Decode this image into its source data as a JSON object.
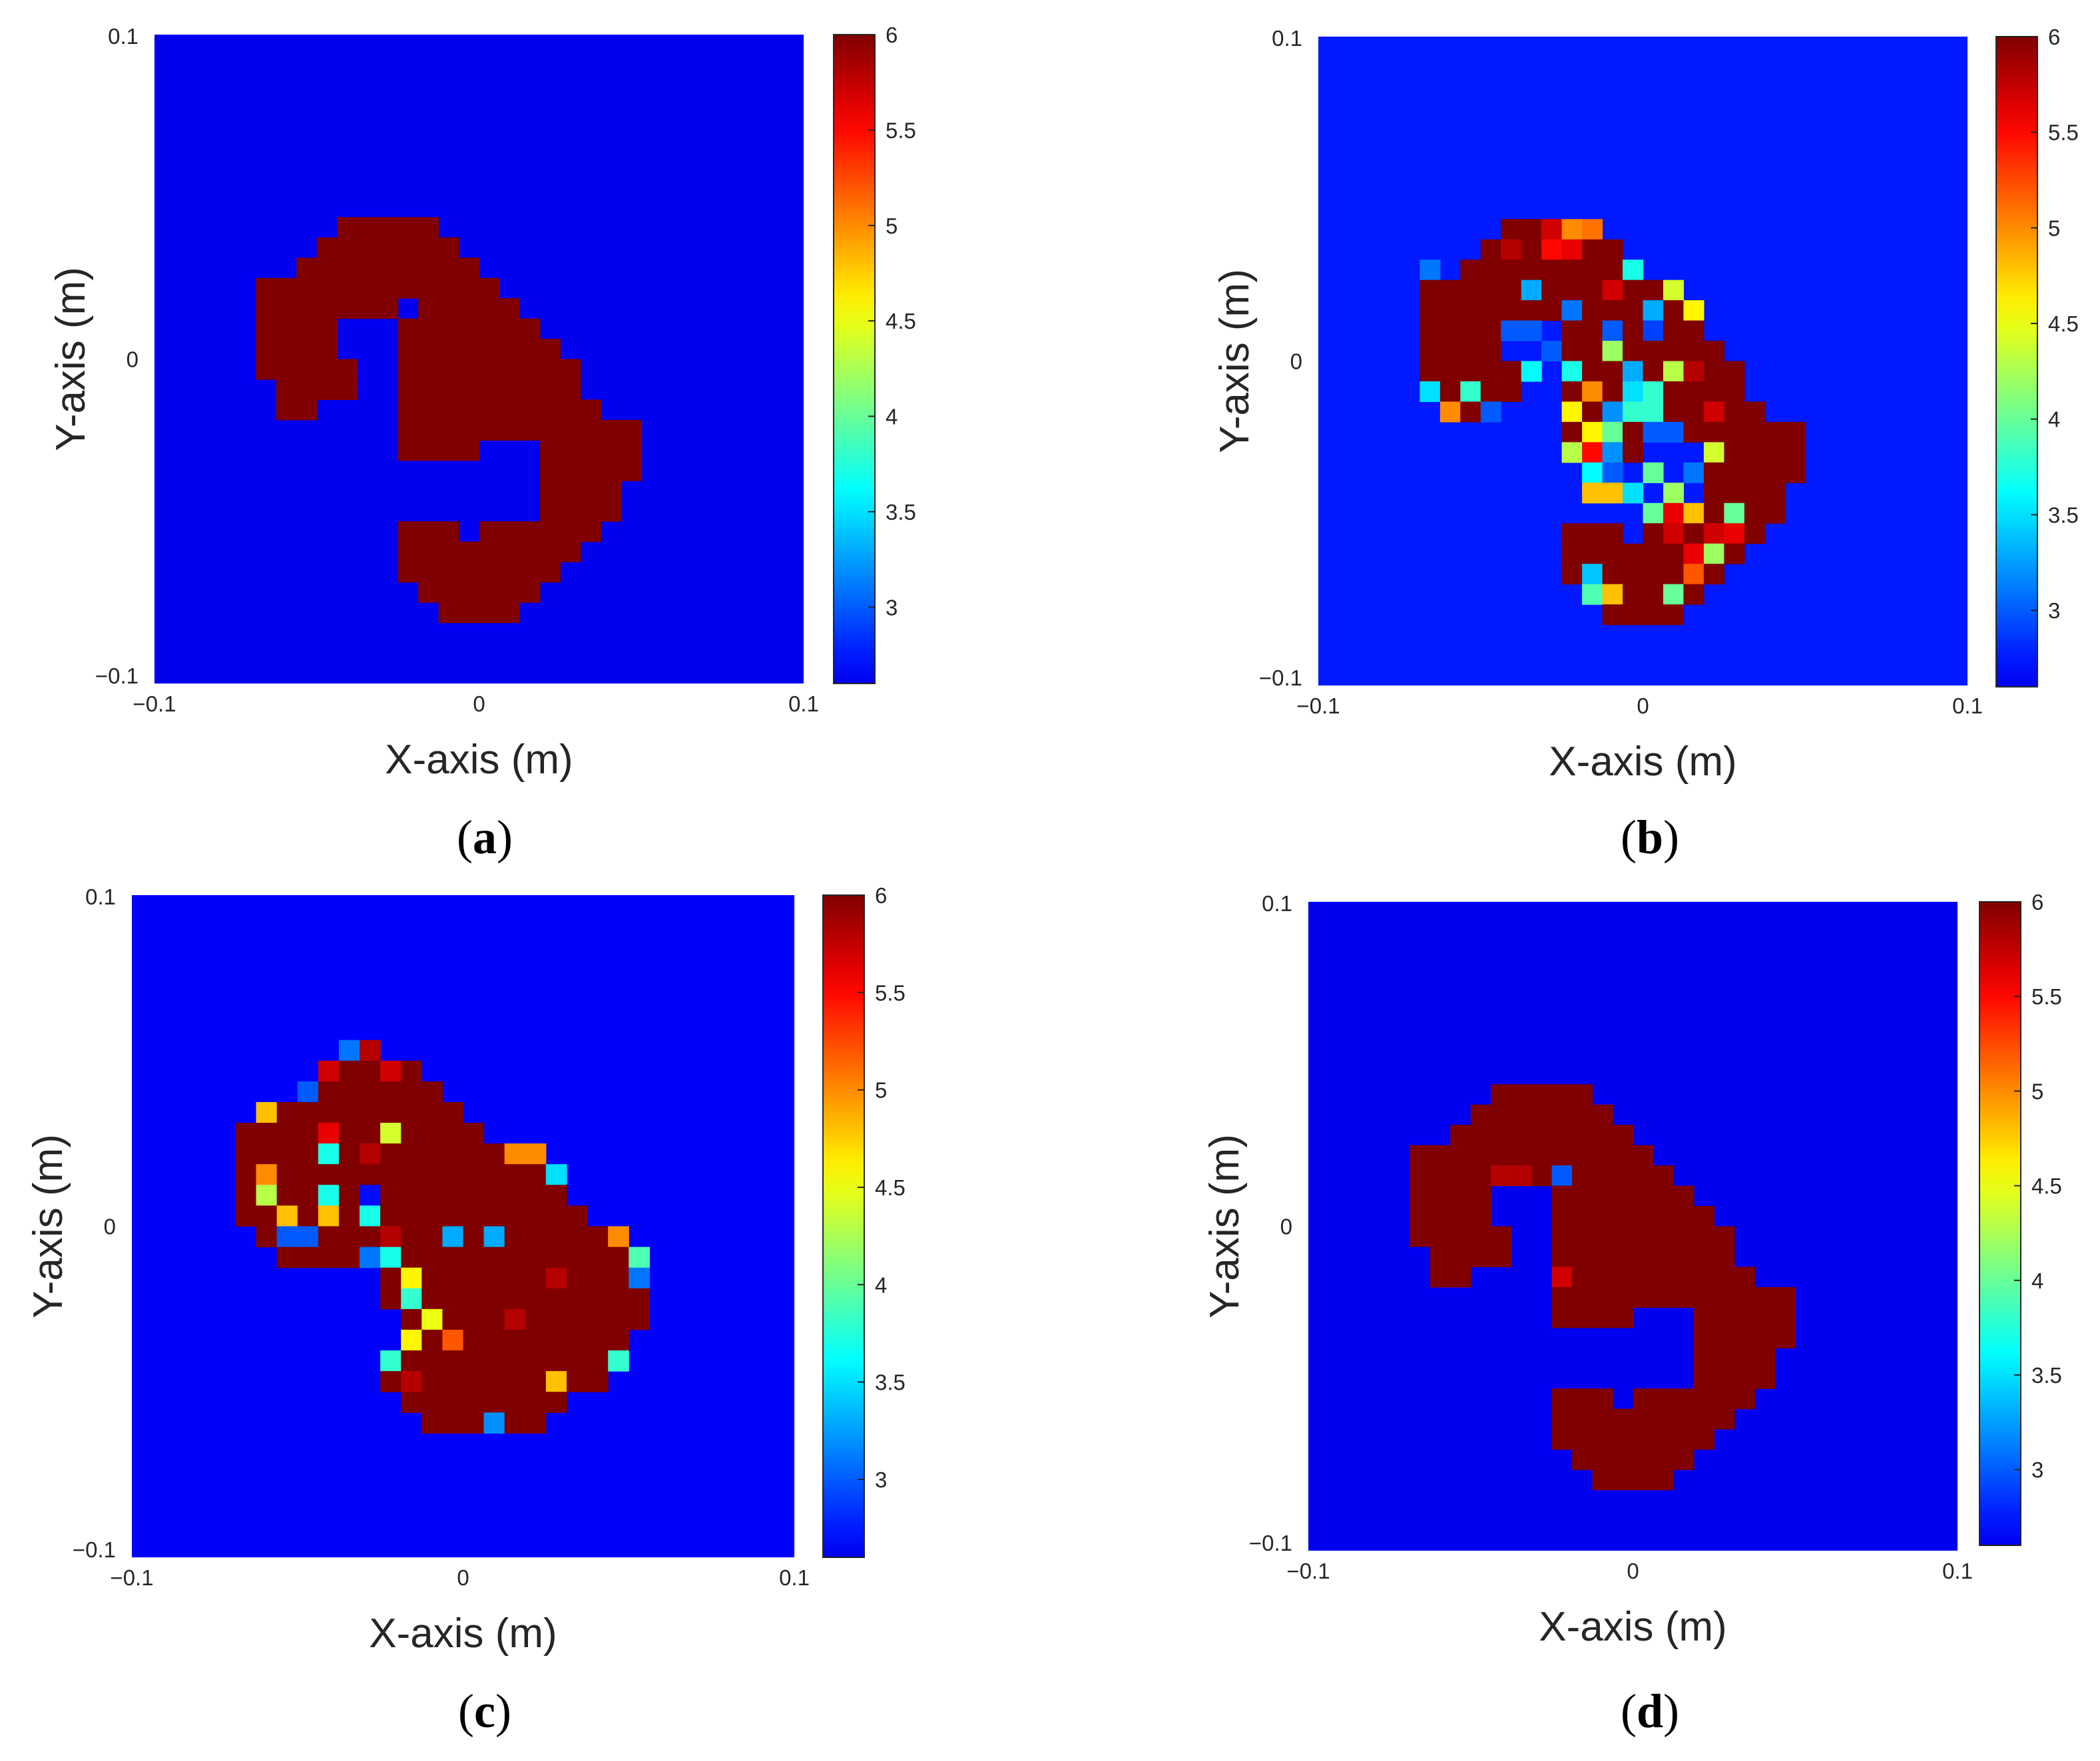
{
  "chart_data": [
    {
      "type": "heatmap",
      "panel_label": "a",
      "xlabel": "X-axis (m)",
      "ylabel": "Y-axis (m)",
      "xlim": [
        -0.1,
        0.1
      ],
      "ylim": [
        -0.1,
        0.1
      ],
      "xticks": [
        "−0.1",
        "0",
        "0.1"
      ],
      "yticks": [
        "0.1",
        "0",
        "−0.1"
      ],
      "grid_size": 32,
      "background_value": 2.6,
      "shape_value": 6,
      "shape_rows": [
        [],
        [],
        [],
        [],
        [],
        [],
        [],
        [],
        [],
        [
          [
            9,
            13
          ]
        ],
        [
          [
            8,
            14
          ]
        ],
        [
          [
            7,
            15
          ]
        ],
        [
          [
            5,
            16
          ]
        ],
        [
          [
            5,
            11
          ],
          [
            13,
            17
          ]
        ],
        [
          [
            5,
            8
          ],
          [
            12,
            18
          ]
        ],
        [
          [
            5,
            8
          ],
          [
            12,
            19
          ]
        ],
        [
          [
            5,
            9
          ],
          [
            12,
            20
          ]
        ],
        [
          [
            6,
            9
          ],
          [
            12,
            20
          ]
        ],
        [
          [
            6,
            7
          ],
          [
            12,
            21
          ]
        ],
        [
          [
            12,
            23
          ]
        ],
        [
          [
            12,
            15
          ],
          [
            19,
            23
          ]
        ],
        [
          [
            19,
            23
          ]
        ],
        [
          [
            19,
            22
          ]
        ],
        [
          [
            19,
            22
          ]
        ],
        [
          [
            12,
            14
          ],
          [
            16,
            21
          ]
        ],
        [
          [
            12,
            20
          ]
        ],
        [
          [
            12,
            19
          ]
        ],
        [
          [
            13,
            18
          ]
        ],
        [
          [
            14,
            17
          ]
        ],
        [],
        [],
        []
      ],
      "cell_values": [],
      "colorbar": {
        "min": 2.6,
        "max": 6,
        "ticks": [
          3,
          3.5,
          4,
          4.5,
          5,
          5.5,
          6
        ],
        "tick_labels": [
          "3",
          "3.5",
          "4",
          "4.5",
          "5",
          "5.5",
          "6"
        ],
        "colormap": "jet"
      }
    },
    {
      "type": "heatmap",
      "panel_label": "b",
      "xlabel": "X-axis (m)",
      "ylabel": "Y-axis (m)",
      "xlim": [
        -0.1,
        0.1
      ],
      "ylim": [
        -0.1,
        0.1
      ],
      "xticks": [
        "−0.1",
        "0",
        "0.1"
      ],
      "yticks": [
        "0.1",
        "0",
        "−0.1"
      ],
      "grid_size": 32,
      "background_value": 2.75,
      "shape_value": 6,
      "shape_rows": [
        [],
        [],
        [],
        [],
        [],
        [],
        [],
        [],
        [],
        [
          [
            9,
            13
          ]
        ],
        [
          [
            8,
            14
          ]
        ],
        [
          [
            7,
            15
          ]
        ],
        [
          [
            5,
            16
          ]
        ],
        [
          [
            5,
            11
          ],
          [
            13,
            17
          ]
        ],
        [
          [
            5,
            8
          ],
          [
            12,
            18
          ]
        ],
        [
          [
            5,
            8
          ],
          [
            12,
            19
          ]
        ],
        [
          [
            5,
            9
          ],
          [
            12,
            20
          ]
        ],
        [
          [
            6,
            9
          ],
          [
            12,
            20
          ]
        ],
        [
          [
            6,
            7
          ],
          [
            12,
            21
          ]
        ],
        [
          [
            12,
            23
          ]
        ],
        [
          [
            12,
            15
          ],
          [
            19,
            23
          ]
        ],
        [
          [
            19,
            23
          ]
        ],
        [
          [
            19,
            22
          ]
        ],
        [
          [
            19,
            22
          ]
        ],
        [
          [
            12,
            14
          ],
          [
            16,
            21
          ]
        ],
        [
          [
            12,
            20
          ]
        ],
        [
          [
            12,
            19
          ]
        ],
        [
          [
            13,
            18
          ]
        ],
        [
          [
            14,
            17
          ]
        ],
        [],
        [],
        []
      ],
      "cell_values": [
        [
          9,
          11,
          5.7
        ],
        [
          9,
          12,
          5.0
        ],
        [
          9,
          13,
          5.1
        ],
        [
          10,
          9,
          5.8
        ],
        [
          10,
          11,
          5.5
        ],
        [
          10,
          12,
          5.6
        ],
        [
          11,
          15,
          3.7
        ],
        [
          11,
          5,
          3.1
        ],
        [
          12,
          17,
          4.4
        ],
        [
          12,
          10,
          3.3
        ],
        [
          12,
          14,
          5.7
        ],
        [
          13,
          16,
          3.3
        ],
        [
          13,
          18,
          4.6
        ],
        [
          13,
          12,
          3.1
        ],
        [
          14,
          14,
          3.0
        ],
        [
          14,
          16,
          2.9
        ],
        [
          14,
          10,
          3.0
        ],
        [
          14,
          9,
          3.0
        ],
        [
          15,
          14,
          4.2
        ],
        [
          15,
          11,
          3.0
        ],
        [
          16,
          10,
          3.6
        ],
        [
          16,
          15,
          3.3
        ],
        [
          16,
          12,
          3.7
        ],
        [
          16,
          17,
          4.3
        ],
        [
          16,
          18,
          5.8
        ],
        [
          17,
          5,
          3.5
        ],
        [
          17,
          7,
          3.8
        ],
        [
          17,
          13,
          5.0
        ],
        [
          17,
          15,
          3.5
        ],
        [
          17,
          16,
          3.8
        ],
        [
          18,
          6,
          5.0
        ],
        [
          18,
          8,
          3.0
        ],
        [
          18,
          12,
          4.6
        ],
        [
          18,
          14,
          3.2
        ],
        [
          18,
          15,
          3.8
        ],
        [
          18,
          16,
          3.8
        ],
        [
          18,
          19,
          5.7
        ],
        [
          19,
          13,
          4.6
        ],
        [
          19,
          14,
          4.0
        ],
        [
          19,
          16,
          3.0
        ],
        [
          19,
          17,
          3.0
        ],
        [
          20,
          12,
          4.3
        ],
        [
          20,
          13,
          5.5
        ],
        [
          20,
          14,
          3.2
        ],
        [
          20,
          19,
          4.4
        ],
        [
          21,
          13,
          3.6
        ],
        [
          21,
          14,
          3.0
        ],
        [
          21,
          16,
          4.0
        ],
        [
          21,
          18,
          3.1
        ],
        [
          22,
          13,
          4.8
        ],
        [
          22,
          14,
          4.8
        ],
        [
          22,
          15,
          3.5
        ],
        [
          22,
          17,
          4.2
        ],
        [
          23,
          16,
          4.0
        ],
        [
          23,
          17,
          5.6
        ],
        [
          23,
          18,
          4.8
        ],
        [
          23,
          20,
          4.0
        ],
        [
          24,
          17,
          5.7
        ],
        [
          24,
          19,
          5.7
        ],
        [
          24,
          20,
          5.6
        ],
        [
          25,
          18,
          5.6
        ],
        [
          25,
          19,
          4.2
        ],
        [
          26,
          13,
          3.4
        ],
        [
          26,
          18,
          5.2
        ],
        [
          27,
          13,
          3.9
        ],
        [
          27,
          14,
          4.8
        ],
        [
          27,
          17,
          4.0
        ]
      ],
      "colorbar": {
        "min": 2.6,
        "max": 6,
        "ticks": [
          3,
          3.5,
          4,
          4.5,
          5,
          5.5,
          6
        ],
        "tick_labels": [
          "3",
          "3.5",
          "4",
          "4.5",
          "5",
          "5.5",
          "6"
        ],
        "colormap": "jet"
      }
    },
    {
      "type": "heatmap",
      "panel_label": "c",
      "xlabel": "X-axis (m)",
      "ylabel": "Y-axis (m)",
      "xlim": [
        -0.1,
        0.1
      ],
      "ylim": [
        -0.1,
        0.1
      ],
      "xticks": [
        "−0.1",
        "0",
        "0.1"
      ],
      "yticks": [
        "0.1",
        "0",
        "−0.1"
      ],
      "grid_size": 32,
      "background_value": 2.65,
      "shape_value": 6,
      "shape_rows": [
        [],
        [],
        [],
        [],
        [],
        [],
        [],
        [
          [
            10,
            11
          ]
        ],
        [
          [
            9,
            13
          ]
        ],
        [
          [
            8,
            14
          ]
        ],
        [
          [
            7,
            15
          ]
        ],
        [
          [
            5,
            16
          ]
        ],
        [
          [
            5,
            17
          ]
        ],
        [
          [
            5,
            19
          ]
        ],
        [
          [
            5,
            20
          ]
        ],
        [
          [
            5,
            21
          ]
        ],
        [
          [
            6,
            22
          ]
        ],
        [
          [
            7,
            23
          ]
        ],
        [
          [
            12,
            24
          ]
        ],
        [
          [
            12,
            24
          ]
        ],
        [
          [
            13,
            24
          ]
        ],
        [
          [
            13,
            23
          ]
        ],
        [
          [
            12,
            23
          ]
        ],
        [
          [
            12,
            22
          ]
        ],
        [
          [
            13,
            20
          ]
        ],
        [
          [
            14,
            19
          ]
        ],
        [],
        [],
        [],
        [],
        [],
        []
      ],
      "cell_values": [
        [
          7,
          10,
          3.1
        ],
        [
          7,
          11,
          5.8
        ],
        [
          8,
          9,
          5.7
        ],
        [
          8,
          12,
          5.7
        ],
        [
          9,
          8,
          3.0
        ],
        [
          10,
          6,
          4.8
        ],
        [
          11,
          9,
          5.6
        ],
        [
          11,
          12,
          4.4
        ],
        [
          12,
          9,
          3.7
        ],
        [
          12,
          11,
          5.8
        ],
        [
          12,
          18,
          5.0
        ],
        [
          12,
          19,
          5.0
        ],
        [
          13,
          6,
          5.0
        ],
        [
          13,
          20,
          3.5
        ],
        [
          14,
          6,
          4.3
        ],
        [
          14,
          9,
          3.7
        ],
        [
          14,
          11,
          2.7
        ],
        [
          15,
          7,
          4.8
        ],
        [
          15,
          9,
          4.8
        ],
        [
          15,
          11,
          3.7
        ],
        [
          16,
          7,
          3.0
        ],
        [
          16,
          8,
          3.0
        ],
        [
          16,
          12,
          5.8
        ],
        [
          16,
          15,
          3.3
        ],
        [
          16,
          17,
          3.3
        ],
        [
          16,
          23,
          5.0
        ],
        [
          17,
          11,
          3.1
        ],
        [
          17,
          12,
          3.7
        ],
        [
          17,
          24,
          3.9
        ],
        [
          18,
          13,
          4.6
        ],
        [
          18,
          20,
          5.8
        ],
        [
          18,
          24,
          3.1
        ],
        [
          19,
          13,
          3.8
        ],
        [
          20,
          14,
          4.5
        ],
        [
          20,
          18,
          5.8
        ],
        [
          21,
          13,
          4.6
        ],
        [
          21,
          15,
          5.2
        ],
        [
          22,
          12,
          3.8
        ],
        [
          22,
          23,
          3.8
        ],
        [
          23,
          13,
          5.8
        ],
        [
          23,
          20,
          4.8
        ],
        [
          25,
          17,
          3.2
        ]
      ],
      "colorbar": {
        "min": 2.6,
        "max": 6,
        "ticks": [
          3,
          3.5,
          4,
          4.5,
          5,
          5.5,
          6
        ],
        "tick_labels": [
          "3",
          "3.5",
          "4",
          "4.5",
          "5",
          "5.5",
          "6"
        ],
        "colormap": "jet"
      }
    },
    {
      "type": "heatmap",
      "panel_label": "d",
      "xlabel": "X-axis (m)",
      "ylabel": "Y-axis (m)",
      "xlim": [
        -0.1,
        0.1
      ],
      "ylim": [
        -0.1,
        0.1
      ],
      "xticks": [
        "−0.1",
        "0",
        "0.1"
      ],
      "yticks": [
        "0.1",
        "0",
        "−0.1"
      ],
      "grid_size": 32,
      "background_value": 2.6,
      "shape_value": 6,
      "shape_rows": [
        [],
        [],
        [],
        [],
        [],
        [],
        [],
        [],
        [],
        [
          [
            9,
            13
          ]
        ],
        [
          [
            8,
            14
          ]
        ],
        [
          [
            7,
            15
          ]
        ],
        [
          [
            5,
            16
          ]
        ],
        [
          [
            5,
            11
          ],
          [
            13,
            17
          ]
        ],
        [
          [
            5,
            8
          ],
          [
            12,
            18
          ]
        ],
        [
          [
            5,
            8
          ],
          [
            12,
            19
          ]
        ],
        [
          [
            5,
            9
          ],
          [
            12,
            20
          ]
        ],
        [
          [
            6,
            9
          ],
          [
            12,
            20
          ]
        ],
        [
          [
            6,
            7
          ],
          [
            12,
            21
          ]
        ],
        [
          [
            12,
            23
          ]
        ],
        [
          [
            12,
            15
          ],
          [
            19,
            23
          ]
        ],
        [
          [
            19,
            23
          ]
        ],
        [
          [
            19,
            22
          ]
        ],
        [
          [
            19,
            22
          ]
        ],
        [
          [
            12,
            14
          ],
          [
            16,
            21
          ]
        ],
        [
          [
            12,
            20
          ]
        ],
        [
          [
            12,
            19
          ]
        ],
        [
          [
            13,
            18
          ]
        ],
        [
          [
            14,
            17
          ]
        ],
        [],
        [],
        []
      ],
      "cell_values": [
        [
          13,
          9,
          5.8
        ],
        [
          13,
          10,
          5.8
        ],
        [
          13,
          12,
          3.0
        ],
        [
          18,
          12,
          5.7
        ]
      ],
      "colorbar": {
        "min": 2.6,
        "max": 6,
        "ticks": [
          3,
          3.5,
          4,
          4.5,
          5,
          5.5,
          6
        ],
        "tick_labels": [
          "3",
          "3.5",
          "4",
          "4.5",
          "5",
          "5.5",
          "6"
        ],
        "colormap": "jet"
      }
    }
  ]
}
